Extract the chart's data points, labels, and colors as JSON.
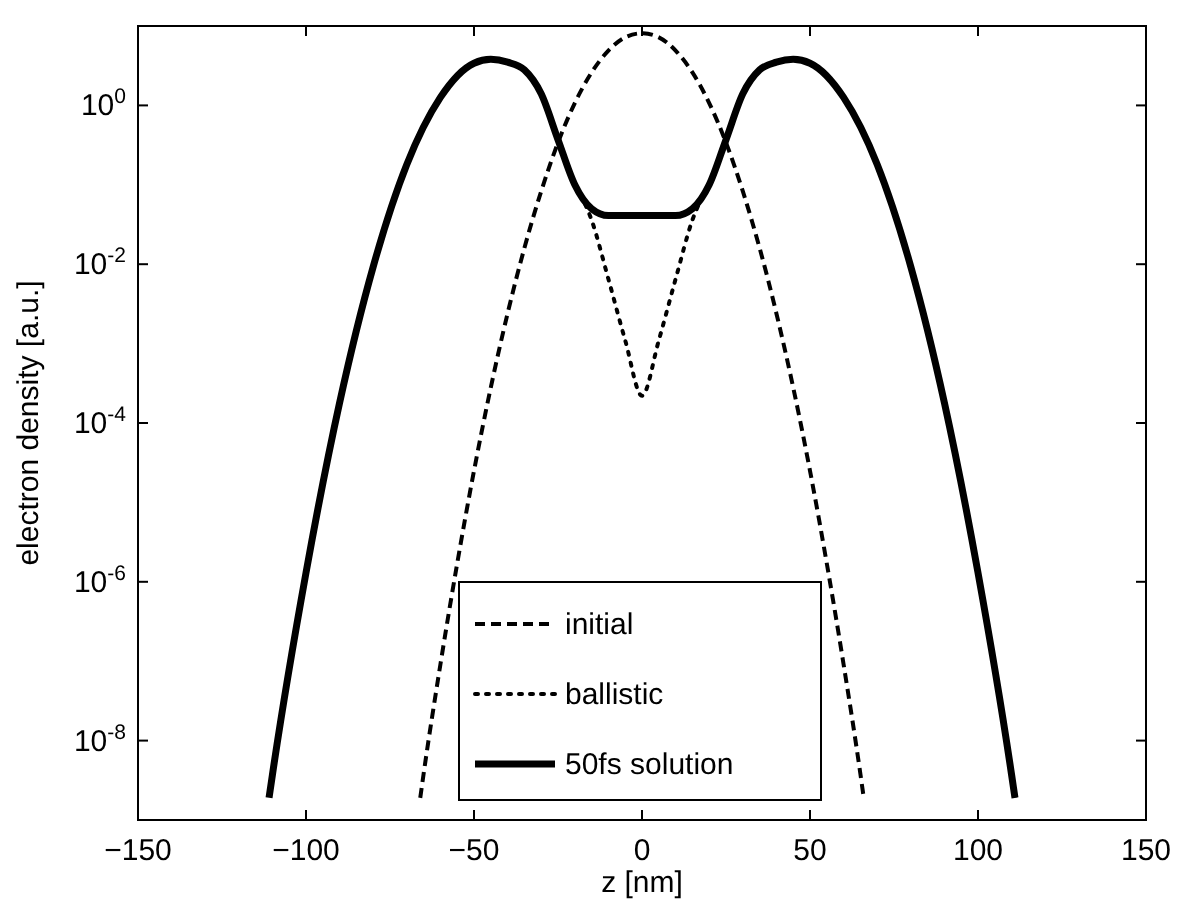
{
  "chart_data": {
    "type": "line",
    "xlabel": "z [nm]",
    "ylabel": "electron density [a.u.]",
    "log": "y",
    "xlim": [
      -150,
      150
    ],
    "xticks": [
      -150,
      -100,
      -50,
      0,
      50,
      100,
      150
    ],
    "ylim": [
      1e-09,
      10
    ],
    "yticks": [
      {
        "value": 1e-08,
        "label": "10$^{-8}$"
      },
      {
        "value": 1e-06,
        "label": "10$^{-6}$"
      },
      {
        "value": 0.0001,
        "label": "10$^{-4}$"
      },
      {
        "value": 0.01,
        "label": "10$^{-2}$"
      },
      {
        "value": 1,
        "label": "10$^{0}$"
      }
    ],
    "grid": false,
    "legend": "bottom",
    "series": [
      {
        "name": "initial",
        "color": "#000000",
        "line_style": "dashed",
        "x": [
          -66,
          -65,
          -60,
          -55,
          -50,
          -45,
          -40,
          -35,
          -30,
          -25,
          -20,
          -15,
          -10,
          -5,
          0,
          5,
          10,
          15,
          20,
          25,
          30,
          35,
          40,
          45,
          50,
          55,
          60,
          65,
          66
        ],
        "values": [
          1.9e-09,
          3.8e-09,
          9.1e-08,
          1.7e-06,
          2.5e-05,
          0.00028,
          0.0024,
          0.016,
          0.083,
          0.34,
          1.07,
          2.6,
          4.9,
          7.2,
          8.1,
          7.2,
          4.9,
          2.6,
          1.07,
          0.34,
          0.083,
          0.016,
          0.0024,
          0.00028,
          2.5e-05,
          1.7e-06,
          9.1e-08,
          3.8e-09,
          1.9e-09
        ]
      },
      {
        "name": "ballistic",
        "color": "#000000",
        "line_style": "dotted",
        "x": [
          -20,
          -15,
          -10,
          -5,
          0,
          5,
          10,
          15,
          20
        ],
        "values": [
          0.1,
          0.036,
          0.0065,
          0.0011,
          0.00022,
          0.0011,
          0.0065,
          0.036,
          0.1
        ]
      },
      {
        "name": "50fs solution",
        "color": "#000000",
        "line_style": "solid",
        "x": [
          -111,
          -110,
          -100,
          -90,
          -80,
          -70,
          -60,
          -50,
          -45,
          -40,
          -35,
          -30,
          -25,
          -20,
          -15,
          -10,
          0,
          10,
          15,
          20,
          25,
          30,
          35,
          40,
          45,
          50,
          60,
          70,
          80,
          90,
          100,
          110,
          111
        ],
        "values": [
          1.9e-09,
          3.7e-09,
          1.3e-06,
          0.00018,
          0.0093,
          0.18,
          1.26,
          3.4,
          3.8,
          3.5,
          2.8,
          1.4,
          0.37,
          0.1,
          0.05,
          0.041,
          0.041,
          0.041,
          0.05,
          0.1,
          0.37,
          1.4,
          2.8,
          3.5,
          3.8,
          3.4,
          1.26,
          0.18,
          0.0093,
          0.00018,
          1.3e-06,
          3.7e-09,
          1.9e-09
        ]
      }
    ]
  }
}
